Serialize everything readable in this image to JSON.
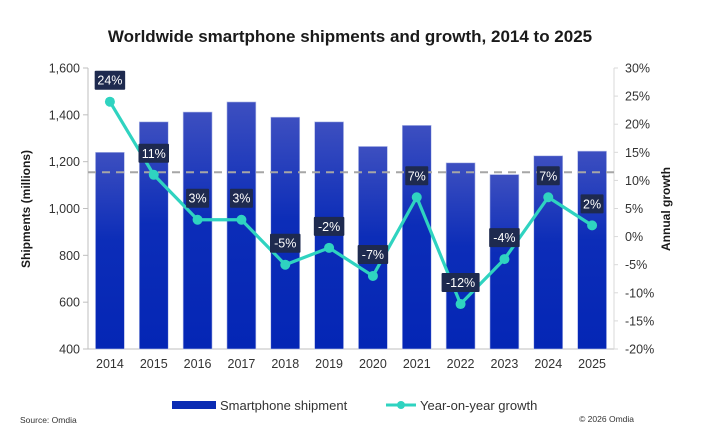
{
  "chart_data": {
    "type": "bar",
    "title": "Worldwide smartphone shipments and growth, 2014 to 2025",
    "categories": [
      "2014",
      "2015",
      "2016",
      "2017",
      "2018",
      "2019",
      "2020",
      "2021",
      "2022",
      "2023",
      "2024",
      "2025"
    ],
    "series": [
      {
        "name": "Smartphone shipment",
        "type": "bar",
        "axis": "left",
        "color": "#0a2bb3",
        "values": [
          1240,
          1370,
          1412,
          1455,
          1390,
          1370,
          1265,
          1355,
          1195,
          1145,
          1225,
          1245
        ]
      },
      {
        "name": "Year-on-year growth",
        "type": "line",
        "axis": "right",
        "color": "#2fd3c0",
        "values": [
          24,
          11,
          3,
          3,
          -5,
          -2,
          -7,
          7,
          -12,
          -4,
          7,
          2
        ],
        "data_labels": [
          "24%",
          "11%",
          "3%",
          "3%",
          "-5%",
          "-2%",
          "-7%",
          "7%",
          "-12%",
          "-4%",
          "7%",
          "2%"
        ]
      }
    ],
    "reference_line": {
      "axis": "left",
      "value": 1155,
      "style": "dashed",
      "color": "#a6a6a6"
    },
    "ylabel": "Shipments (millions)",
    "ylim": [
      400,
      1600
    ],
    "yticks": [
      "400",
      "600",
      "800",
      "1,000",
      "1,200",
      "1,400",
      "1,600"
    ],
    "y2label": "Annual growth",
    "y2lim": [
      -20,
      30
    ],
    "y2ticks": [
      "-20%",
      "-15%",
      "-10%",
      "-5%",
      "0%",
      "5%",
      "10%",
      "15%",
      "20%",
      "25%",
      "30%"
    ],
    "legend": {
      "position": "bottom",
      "entries": [
        "Smartphone shipment",
        "Year-on-year growth"
      ]
    },
    "grid": false
  },
  "footer": {
    "source": "Source: Omdia",
    "copyright": "© 2026 Omdia"
  }
}
